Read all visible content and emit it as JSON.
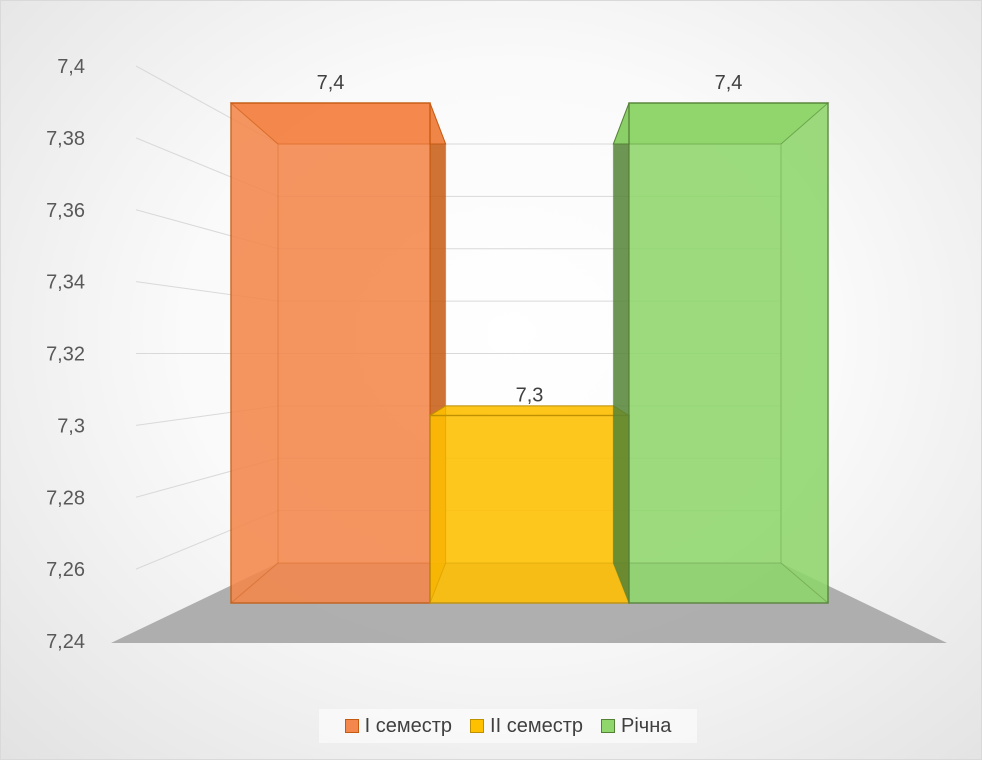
{
  "chart_data": {
    "type": "bar",
    "title": "",
    "xlabel": "",
    "ylabel": "",
    "ylim": [
      7.24,
      7.4
    ],
    "y_ticks": [
      "7,24",
      "7,26",
      "7,28",
      "7,3",
      "7,32",
      "7,34",
      "7,36",
      "7,38",
      "7,4"
    ],
    "grid": true,
    "legend_position": "bottom",
    "series": [
      {
        "name": "I семестр",
        "value": 7.4,
        "label": "7,4",
        "color": "#f4874b",
        "edge": "#c55a11"
      },
      {
        "name": "II семестр",
        "value": 7.3,
        "label": "7,3",
        "color": "#ffc000",
        "edge": "#bf9000"
      },
      {
        "name": "Річна",
        "value": 7.4,
        "label": "7,4",
        "color": "#8fd66c",
        "edge": "#548235"
      }
    ]
  }
}
